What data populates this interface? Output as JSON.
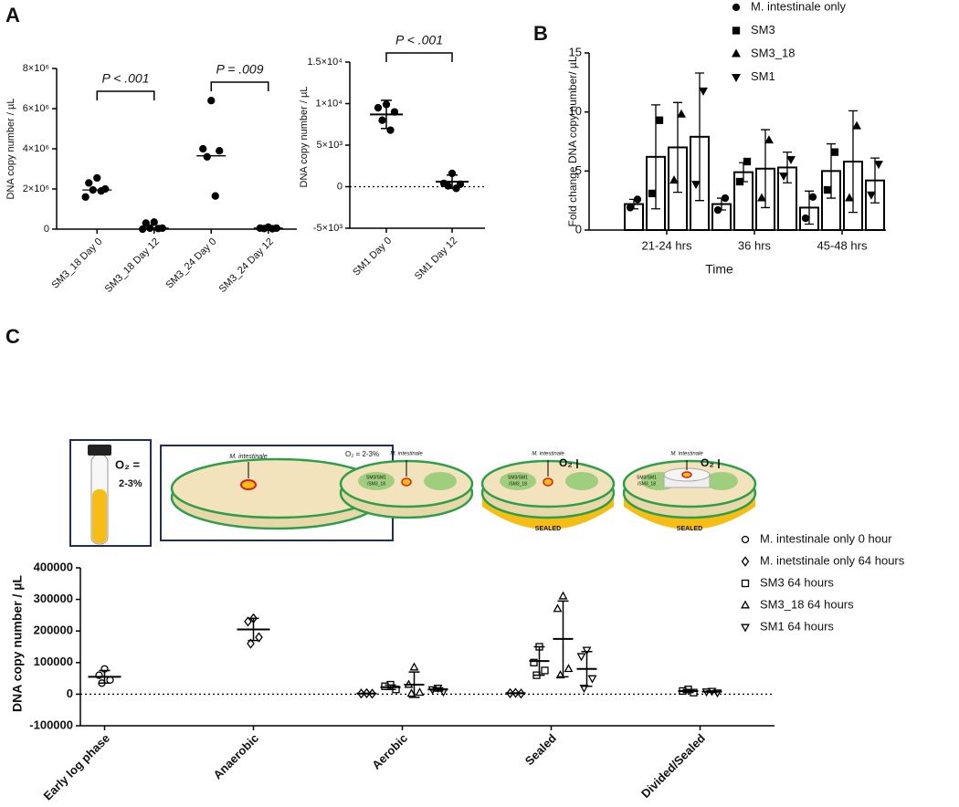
{
  "chart_data": [
    {
      "type": "dot",
      "panel_label": "A",
      "y_label": "DNA copy number / µL",
      "categories": [
        "SM3_18 Day 0",
        "SM3_18 Day 12",
        "SM3_24 Day 0",
        "SM3_24 Day 12"
      ],
      "series": [
        {
          "marker": "circle",
          "filled": true,
          "color": "#000000",
          "points": [
            [
              2550000,
              2300000,
              2000000,
              1950000,
              1900000,
              1600000
            ],
            [
              350000,
              300000,
              50000,
              50000,
              30000,
              0
            ],
            [
              6400000,
              4000000,
              3900000,
              3600000,
              1650000
            ],
            [
              100000,
              50000,
              50000,
              30000,
              20000
            ]
          ],
          "median": [
            1950000,
            50000,
            3650000,
            50000
          ]
        }
      ],
      "ylim": [
        0,
        8000000
      ],
      "yticks": [
        0,
        {
          "value": 2000000,
          "label": "2×10⁶"
        },
        {
          "value": 4000000,
          "label": "4×10⁶"
        },
        {
          "value": 6000000,
          "label": "6×10⁶"
        },
        {
          "value": 8000000,
          "label": "8×10⁶"
        }
      ],
      "annotations": [
        "P < .001",
        "P = .009"
      ]
    },
    {
      "type": "dot",
      "y_label": "DNA copy number / µL",
      "categories": [
        "SM1 Day 0",
        "SM1 Day 12"
      ],
      "series": [
        {
          "marker": "circle",
          "filled": true,
          "color": "#000000",
          "points": [
            [
              9900,
              9500,
              9000,
              8000,
              6800
            ],
            [
              1600,
              400,
              300,
              100,
              -200
            ]
          ],
          "mean": [
            8700,
            600
          ],
          "sd": [
            1700,
            800
          ]
        }
      ],
      "ylim": [
        -5000,
        15000
      ],
      "yticks": [
        {
          "value": -5000,
          "label": "-5×10³"
        },
        0,
        {
          "value": 5000,
          "label": "5×10³"
        },
        {
          "value": 10000,
          "label": "1×10⁴"
        },
        {
          "value": 15000,
          "label": "1.5×10⁴"
        }
      ],
      "zero_line": true,
      "annotations": [
        "P < .001"
      ]
    },
    {
      "type": "bar",
      "panel_label": "B",
      "x_label": "Time",
      "y_label": "Fold change DNA copy number/ µL",
      "categories": [
        "21-24 hrs",
        "36 hrs",
        "45-48 hrs"
      ],
      "series": [
        {
          "name": "M. intestinale only",
          "marker": "circle",
          "filled": true,
          "color": "#000000",
          "values": [
            2.2,
            2.2,
            1.9
          ],
          "errors": [
            0.4,
            0.5,
            1.4
          ],
          "points": [
            [
              2.6,
              1.9
            ],
            [
              2.7,
              1.7
            ],
            [
              2.8,
              1.0
            ]
          ]
        },
        {
          "name": "SM3",
          "marker": "square",
          "filled": true,
          "color": "#000000",
          "values": [
            6.2,
            4.9,
            5.0
          ],
          "errors": [
            4.4,
            0.8,
            2.3
          ],
          "points": [
            [
              9.3,
              3.1
            ],
            [
              5.8,
              4.1
            ],
            [
              6.6,
              3.4
            ]
          ]
        },
        {
          "name": "SM3_18",
          "marker": "triangle-up",
          "filled": true,
          "color": "#000000",
          "values": [
            7.0,
            5.2,
            5.8
          ],
          "errors": [
            3.8,
            3.3,
            4.3
          ],
          "points": [
            [
              9.8,
              4.2
            ],
            [
              7.6,
              2.7
            ],
            [
              8.8,
              2.7
            ]
          ]
        },
        {
          "name": "SM1",
          "marker": "triangle-down",
          "filled": true,
          "color": "#000000",
          "values": [
            7.9,
            5.3,
            4.2
          ],
          "errors": [
            5.4,
            1.3,
            1.9
          ],
          "points": [
            [
              11.8,
              3.9
            ],
            [
              6.0,
              4.6
            ],
            [
              5.6,
              3.0
            ]
          ]
        }
      ],
      "ylim": [
        0,
        15
      ],
      "yticks": [
        0,
        5,
        10,
        15
      ]
    },
    {
      "type": "dot",
      "panel_label": "C",
      "y_label": "DNA copy number / µL",
      "categories": [
        "Early log phase",
        "Anaerobic",
        "Aerobic",
        "Sealed",
        "Divided/Sealed"
      ],
      "series": [
        {
          "name": "M. intestinale only 0 hour",
          "marker": "circle",
          "filled": false,
          "color": "#000000",
          "points": [
            [
              80000,
              60000,
              45000,
              35000
            ],
            null,
            null,
            null,
            null
          ],
          "mean": [
            55000,
            null,
            null,
            null,
            null
          ],
          "sd": [
            20000,
            null,
            null,
            null,
            null
          ]
        },
        {
          "name": "M. inetstinale only 64 hours",
          "marker": "diamond",
          "filled": false,
          "color": "#000000",
          "points": [
            null,
            [
              240000,
              230000,
              180000,
              160000
            ],
            [
              3000,
              2000,
              1500
            ],
            [
              4000,
              3000,
              2000
            ],
            null
          ],
          "mean": [
            null,
            205000,
            2000,
            3000,
            null
          ],
          "sd": [
            null,
            35000,
            600,
            800,
            null
          ]
        },
        {
          "name": "SM3 64 hours",
          "marker": "square",
          "filled": false,
          "color": "#000000",
          "points": [
            null,
            null,
            [
              30000,
              25000,
              15000
            ],
            [
              150000,
              100000,
              75000,
              60000
            ],
            [
              15000,
              10000,
              5000
            ]
          ],
          "mean": [
            null,
            null,
            22000,
            105000,
            10000
          ],
          "sd": [
            null,
            null,
            7000,
            45000,
            5000
          ]
        },
        {
          "name": "SM3_18 64 hours",
          "marker": "triangle-up",
          "filled": false,
          "color": "#000000",
          "points": [
            null,
            null,
            [
              85000,
              30000,
              5000,
              2000
            ],
            [
              310000,
              270000,
              80000,
              60000
            ],
            null
          ],
          "mean": [
            null,
            null,
            30000,
            175000,
            null
          ],
          "sd": [
            null,
            null,
            40000,
            120000,
            null
          ]
        },
        {
          "name": "SM1 64 hours",
          "marker": "triangle-down",
          "filled": false,
          "color": "#000000",
          "points": [
            null,
            null,
            [
              20000,
              15000,
              8000
            ],
            [
              140000,
              120000,
              50000,
              20000
            ],
            [
              10000,
              8000,
              5000
            ]
          ],
          "mean": [
            null,
            null,
            15000,
            80000,
            8000
          ],
          "sd": [
            null,
            null,
            5000,
            55000,
            2500
          ]
        }
      ],
      "ylim": [
        -100000,
        400000
      ],
      "yticks": [
        -100000,
        0,
        100000,
        200000,
        300000,
        400000
      ],
      "zero_line": true
    }
  ],
  "diagram": {
    "tube_label": [
      "O₂ =",
      "2-3%"
    ],
    "plates": [
      {
        "label": "M. intestinale",
        "note": "O₂ = 2-3%"
      },
      {
        "label": "M. intestinale",
        "group": [
          "SM3/SM1",
          "/SM3_18"
        ]
      },
      {
        "label": "M. intestinale",
        "group": [
          "SM3/SM1",
          "/SM3_18"
        ],
        "o2": "O₂",
        "seal": "SEALED"
      },
      {
        "label": "M. intestinale",
        "group": [
          "SM3/SM1",
          "/SM3_18"
        ],
        "o2": "O₂",
        "seal": "SEALED"
      }
    ]
  }
}
